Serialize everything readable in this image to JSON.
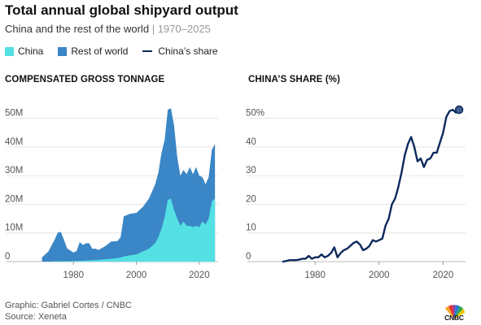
{
  "header": {
    "title": "Total annual global shipyard output",
    "subtitle": "China and the rest of the world",
    "subtitle_separator": "|",
    "subtitle_range": "1970–2025"
  },
  "legend": {
    "china_label": "China",
    "rest_label": "Rest of world",
    "share_label": "China’s share"
  },
  "colors": {
    "china": "#55e0e4",
    "rest_of_world": "#3b86c6",
    "share_line": "#0d2a5e",
    "text": "#1a1a1a",
    "tick": "#555555"
  },
  "footer": {
    "credit": "Graphic: Gabriel Cortes / CNBC",
    "source": "Source: Xeneta"
  },
  "logo": {
    "text": "CNBC",
    "icon": "peacock-icon"
  },
  "chart_data": [
    {
      "type": "area",
      "title": "COMPENSATED GROSS TONNAGE",
      "stacked": true,
      "x_ticks": [
        1980,
        2000,
        2020
      ],
      "y_ticks": [
        0,
        10,
        20,
        30,
        40,
        50
      ],
      "y_tick_labels": [
        "0",
        "10M",
        "20M",
        "30M",
        "40M",
        "50M"
      ],
      "xlim": [
        1967,
        2026
      ],
      "ylim": [
        0,
        55
      ],
      "grid": true,
      "x": [
        1970,
        1972,
        1974,
        1975,
        1976,
        1977,
        1978,
        1980,
        1981,
        1982,
        1983,
        1984,
        1985,
        1986,
        1987,
        1988,
        1990,
        1992,
        1994,
        1995,
        1996,
        1998,
        2000,
        2002,
        2004,
        2006,
        2007,
        2008,
        2009,
        2010,
        2011,
        2012,
        2013,
        2014,
        2015,
        2016,
        2017,
        2018,
        2019,
        2020,
        2021,
        2022,
        2023,
        2024,
        2025
      ],
      "series": [
        {
          "name": "China",
          "values": [
            0,
            0,
            0.1,
            0.1,
            0.1,
            0.1,
            0.1,
            0.2,
            0.2,
            0.3,
            0.3,
            0.4,
            0.4,
            0.5,
            0.5,
            0.6,
            0.8,
            1,
            1.2,
            1.5,
            1.8,
            2.2,
            2.5,
            3.5,
            4.5,
            6.5,
            8.5,
            11.5,
            15.5,
            21.5,
            22,
            18,
            15,
            12.5,
            14,
            12.5,
            12.5,
            12,
            12.5,
            12,
            14,
            13,
            15,
            21,
            22
          ]
        },
        {
          "name": "Rest of world",
          "values": [
            1.5,
            3.5,
            7.5,
            10,
            10.3,
            7.5,
            4.5,
            3,
            3.5,
            6.5,
            5.5,
            6,
            6,
            4,
            4,
            3.5,
            4.5,
            6,
            6,
            7,
            14,
            14.5,
            14.5,
            15.5,
            17.5,
            20.5,
            22.5,
            26.5,
            27,
            31.5,
            31.5,
            29.5,
            21.5,
            17.5,
            18,
            18,
            20.5,
            18.5,
            20.5,
            18,
            15.5,
            14,
            14.5,
            18,
            19
          ]
        }
      ]
    },
    {
      "type": "line",
      "title": "CHINA’S SHARE (%)",
      "x_ticks": [
        1980,
        2000,
        2020
      ],
      "y_ticks": [
        0,
        10,
        20,
        30,
        40,
        50
      ],
      "y_tick_labels": [
        "0",
        "10",
        "20",
        "30",
        "40",
        "50%"
      ],
      "xlim": [
        1967,
        2027
      ],
      "ylim": [
        0,
        55
      ],
      "grid": true,
      "series": [
        {
          "name": "China’s share",
          "x": [
            1970,
            1972,
            1974,
            1975,
            1976,
            1977,
            1978,
            1979,
            1980,
            1981,
            1982,
            1983,
            1984,
            1985,
            1986,
            1987,
            1988,
            1989,
            1990,
            1991,
            1992,
            1993,
            1994,
            1995,
            1996,
            1997,
            1998,
            1999,
            2000,
            2001,
            2002,
            2003,
            2004,
            2005,
            2006,
            2007,
            2008,
            2009,
            2010,
            2011,
            2012,
            2013,
            2014,
            2015,
            2016,
            2017,
            2018,
            2019,
            2020,
            2021,
            2022,
            2023,
            2024,
            2025
          ],
          "values": [
            0,
            0.5,
            0.5,
            0.7,
            1,
            1,
            2,
            1,
            1.5,
            1.5,
            2.5,
            1.5,
            2,
            3,
            5,
            1.5,
            3,
            4,
            4.5,
            5.5,
            6.5,
            7,
            6,
            4,
            4.5,
            5.5,
            7.5,
            7,
            7.5,
            8,
            12.5,
            15,
            20,
            22,
            26,
            31,
            37,
            41,
            43.5,
            40,
            35,
            36,
            33,
            35.5,
            36,
            38,
            38,
            41.5,
            45,
            50.5,
            52.5,
            53,
            52,
            53
          ]
        }
      ]
    }
  ]
}
